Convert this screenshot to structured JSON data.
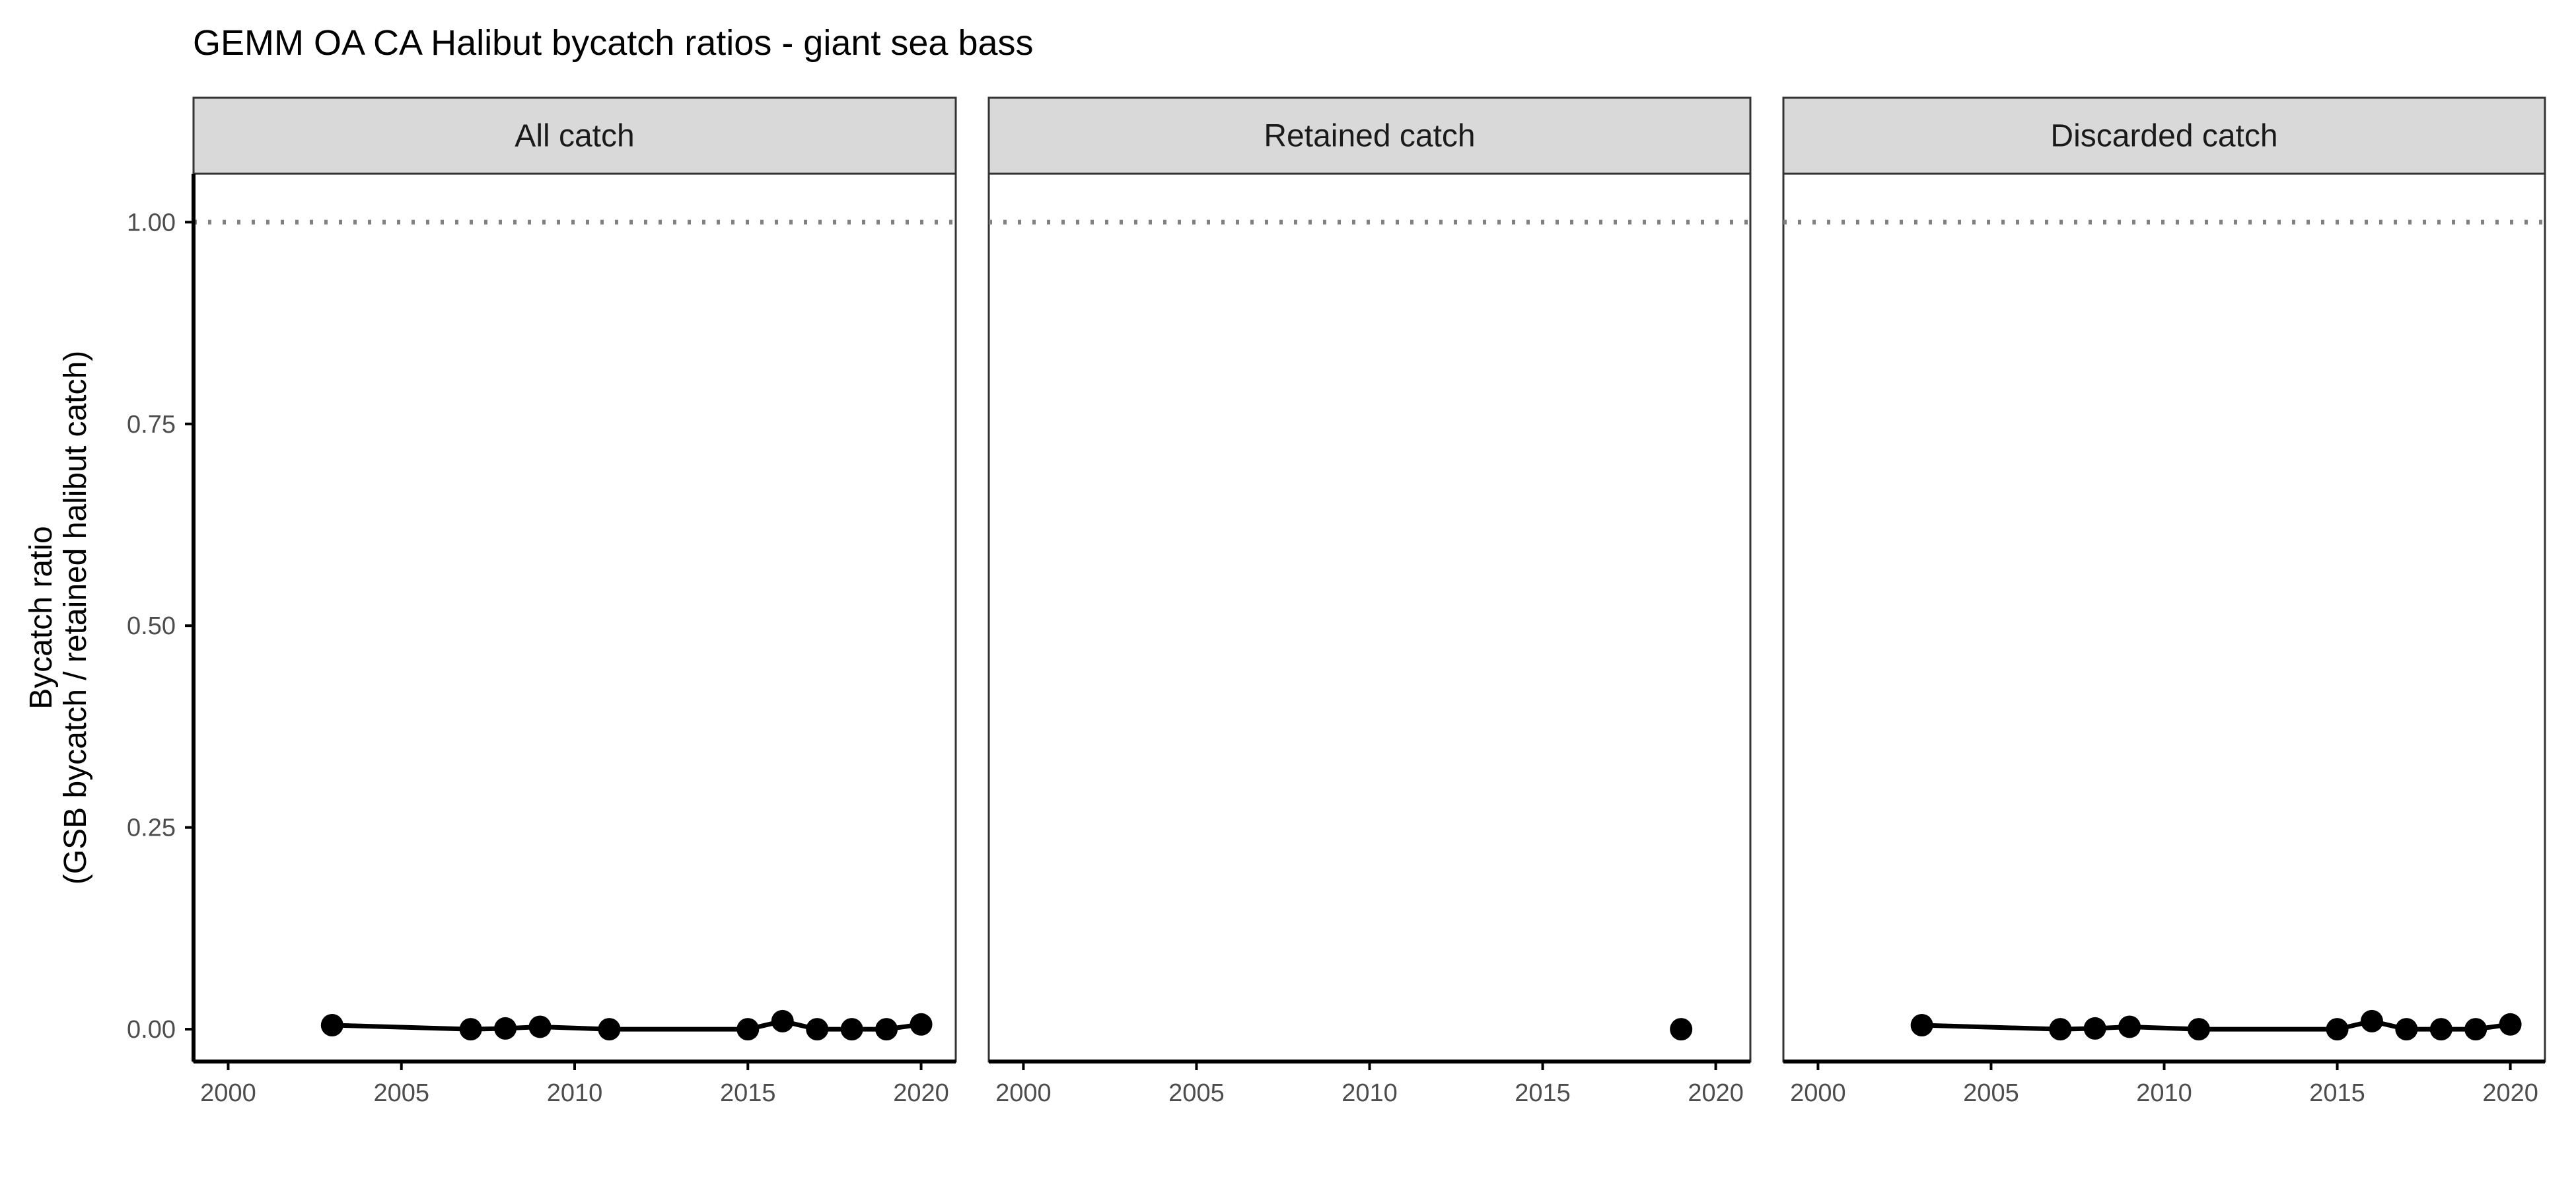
{
  "chart_data": {
    "type": "scatter",
    "title": "GEMM OA CA Halibut bycatch ratios - giant sea bass",
    "ylabel": [
      "Bycatch ratio",
      "(GSB bycatch / retained halibut catch)"
    ],
    "xlabel": "",
    "xlim": [
      1999,
      2021
    ],
    "ylim": [
      -0.04,
      1.06
    ],
    "x_ticks": [
      2000,
      2005,
      2010,
      2015,
      2020
    ],
    "y_ticks": [
      0.0,
      0.25,
      0.5,
      0.75,
      1.0
    ],
    "y_tick_labels": [
      "0.00",
      "0.25",
      "0.50",
      "0.75",
      "1.00"
    ],
    "reference_line": {
      "y": 1.0,
      "style": "dotted",
      "color": "#808080"
    },
    "grid": false,
    "colors": {
      "series": "#000000",
      "strip": "#d9d9d9",
      "frame": "#333333",
      "axis": "#000000"
    },
    "panels": [
      {
        "label": "All catch",
        "connect": true,
        "points": [
          [
            2003,
            0.005
          ],
          [
            2007,
            0.0
          ],
          [
            2008,
            0.001
          ],
          [
            2009,
            0.003
          ],
          [
            2011,
            0.0
          ],
          [
            2015,
            0.0
          ],
          [
            2016,
            0.01
          ],
          [
            2017,
            0.0
          ],
          [
            2018,
            0.0
          ],
          [
            2019,
            0.0
          ],
          [
            2020,
            0.006
          ]
        ]
      },
      {
        "label": "Retained catch",
        "connect": true,
        "points": [
          [
            2019,
            0.0
          ]
        ]
      },
      {
        "label": "Discarded catch",
        "connect": true,
        "points": [
          [
            2003,
            0.005
          ],
          [
            2007,
            0.0
          ],
          [
            2008,
            0.001
          ],
          [
            2009,
            0.003
          ],
          [
            2011,
            0.0
          ],
          [
            2015,
            0.0
          ],
          [
            2016,
            0.01
          ],
          [
            2017,
            0.0
          ],
          [
            2018,
            0.0
          ],
          [
            2019,
            0.0
          ],
          [
            2020,
            0.006
          ]
        ]
      }
    ]
  }
}
